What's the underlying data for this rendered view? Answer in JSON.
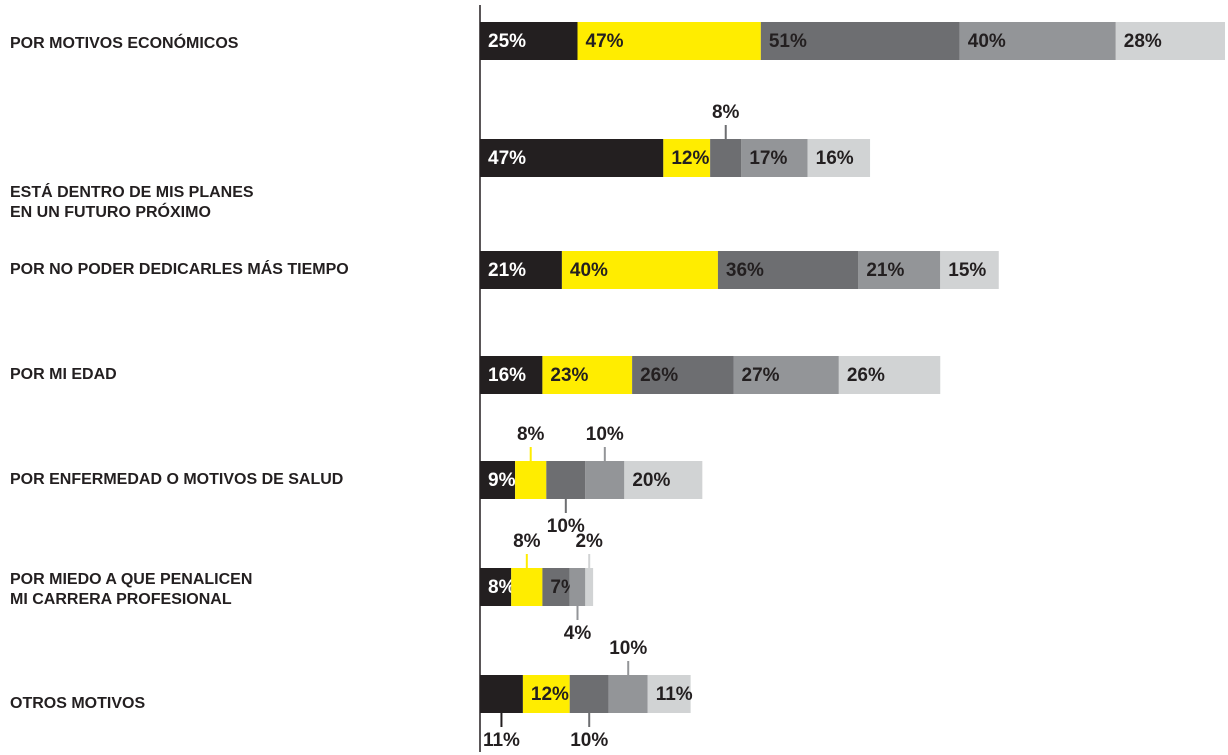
{
  "chart_data": {
    "type": "stacked-bar-horizontal",
    "categories": [
      "POR MOTIVOS ECONÓMICOS",
      "ESTÁ DENTRO DE MIS PLANES\nEN UN  FUTURO PRÓXIMO",
      "POR NO PODER DEDICARLES MÁS TIEMPO",
      "POR MI EDAD",
      "POR ENFERMEDAD O MOTIVOS DE SALUD",
      "POR MIEDO A QUE PENALICEN\nMI CARRERA PROFESIONAL",
      "OTROS MOTIVOS"
    ],
    "series": [
      {
        "color": "#231f20",
        "values": [
          25,
          47,
          21,
          16,
          9,
          8,
          11
        ],
        "value_labels": [
          "25%",
          "47%",
          "21%",
          "16%",
          "9%",
          "8%",
          "11%"
        ]
      },
      {
        "color": "#ffed00",
        "values": [
          47,
          12,
          40,
          23,
          8,
          8,
          12
        ],
        "value_labels": [
          "47%",
          "12%",
          "40%",
          "23%",
          "8%",
          "8%",
          "12%"
        ]
      },
      {
        "color": "#6d6e71",
        "values": [
          51,
          8,
          36,
          26,
          10,
          7,
          10
        ],
        "value_labels": [
          "51%",
          "8%",
          "36%",
          "26%",
          "10%",
          "7%",
          "10%"
        ]
      },
      {
        "color": "#939598",
        "values": [
          40,
          17,
          21,
          27,
          10,
          4,
          10
        ],
        "value_labels": [
          "40%",
          "17%",
          "21%",
          "27%",
          "10%",
          "4%",
          "10%"
        ]
      },
      {
        "color": "#d1d3d4",
        "values": [
          28,
          16,
          15,
          26,
          20,
          2,
          11
        ],
        "value_labels": [
          "28%",
          "16%",
          "15%",
          "26%",
          "20%",
          "2%",
          "11%"
        ]
      }
    ]
  }
}
